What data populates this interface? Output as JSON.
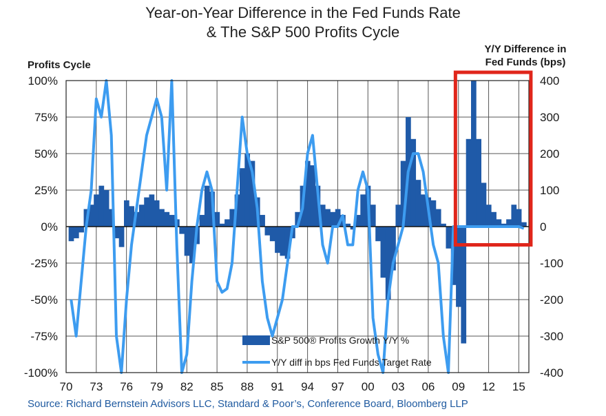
{
  "header": {
    "title_line1": "Year-on-Year Difference in the Fed Funds Rate",
    "title_line2": "& The S&P 500 Profits Cycle"
  },
  "axes": {
    "left_title": "Profits Cycle",
    "right_title_line1": "Y/Y Difference in",
    "right_title_line2": "Fed Funds (bps)"
  },
  "footer": {
    "source": "Source: Richard Bernstein Advisors LLC, Standard & Poor’s, Conference Board, Bloomberg LLP"
  },
  "colors": {
    "bars": "#1f5aa8",
    "line": "#3d9cf0",
    "highlight_box": "#e0261b"
  },
  "chart_data": {
    "type": "bar",
    "x_axis": {
      "range": [
        1970,
        2016
      ],
      "tick_values": [
        1970,
        1973,
        1976,
        1979,
        1982,
        1985,
        1988,
        1991,
        1994,
        1997,
        2000,
        2003,
        2006,
        2009,
        2012,
        2015
      ],
      "tick_labels": [
        "70",
        "73",
        "76",
        "79",
        "82",
        "85",
        "88",
        "91",
        "94",
        "97",
        "00",
        "03",
        "06",
        "09",
        "12",
        "15"
      ]
    },
    "y_left": {
      "range": [
        -100,
        100
      ],
      "tick_values": [
        100,
        75,
        50,
        25,
        0,
        -25,
        -50,
        -75,
        -100
      ],
      "tick_labels": [
        "100%",
        "75%",
        "50%",
        "25%",
        "0%",
        "-25%",
        "-50%",
        "-75%",
        "-100%"
      ]
    },
    "y_right": {
      "range": [
        -400,
        400
      ],
      "tick_values": [
        400,
        300,
        200,
        100,
        0,
        -100,
        -200,
        -300,
        -400
      ],
      "tick_labels": [
        "400",
        "300",
        "200",
        "100",
        "0",
        "-100",
        "-200",
        "-300",
        "-400"
      ]
    },
    "grid": true,
    "legend_position": "bottom-center",
    "highlight_box": {
      "x_range": [
        2008.7,
        2016.2
      ],
      "y_right_range": [
        -50,
        400
      ]
    },
    "series": [
      {
        "name": "S&P 500® Profits Growth Y/Y %",
        "type": "bar",
        "axis": "left",
        "x": [
          1970.5,
          1971.0,
          1971.5,
          1972.0,
          1972.5,
          1973.0,
          1973.5,
          1974.0,
          1974.5,
          1975.0,
          1975.5,
          1976.0,
          1976.5,
          1977.0,
          1977.5,
          1978.0,
          1978.5,
          1979.0,
          1979.5,
          1980.0,
          1980.5,
          1981.0,
          1981.5,
          1982.0,
          1982.5,
          1983.0,
          1983.5,
          1984.0,
          1984.5,
          1985.0,
          1985.5,
          1986.0,
          1986.5,
          1987.0,
          1987.5,
          1988.0,
          1988.5,
          1989.0,
          1989.5,
          1990.0,
          1990.5,
          1991.0,
          1991.5,
          1992.0,
          1992.5,
          1993.0,
          1993.5,
          1994.0,
          1994.5,
          1995.0,
          1995.5,
          1996.0,
          1996.5,
          1997.0,
          1997.5,
          1998.0,
          1998.5,
          1999.0,
          1999.5,
          2000.0,
          2000.5,
          2001.0,
          2001.5,
          2002.0,
          2002.5,
          2003.0,
          2003.5,
          2004.0,
          2004.5,
          2005.0,
          2005.5,
          2006.0,
          2006.5,
          2007.0,
          2007.5,
          2008.0,
          2008.5,
          2009.0,
          2009.5,
          2010.0,
          2010.5,
          2011.0,
          2011.5,
          2012.0,
          2012.5,
          2013.0,
          2013.5,
          2014.0,
          2014.5,
          2015.0,
          2015.5
        ],
        "values": [
          -10,
          -8,
          -4,
          12,
          15,
          22,
          28,
          25,
          12,
          -8,
          -14,
          18,
          14,
          10,
          15,
          20,
          22,
          18,
          12,
          10,
          8,
          5,
          -5,
          -20,
          -25,
          -12,
          8,
          28,
          24,
          10,
          2,
          5,
          12,
          22,
          40,
          50,
          45,
          20,
          8,
          -6,
          -10,
          -18,
          -20,
          -22,
          -8,
          10,
          28,
          45,
          42,
          28,
          15,
          12,
          10,
          12,
          8,
          2,
          -2,
          8,
          22,
          28,
          15,
          -10,
          -35,
          -50,
          -30,
          15,
          45,
          75,
          60,
          32,
          22,
          20,
          18,
          12,
          2,
          -15,
          -40,
          -55,
          -80,
          60,
          100,
          60,
          30,
          15,
          10,
          5,
          2,
          5,
          15,
          12,
          3
        ]
      },
      {
        "name": "Y/Y diff in bps Fed Funds Target Rate",
        "type": "line",
        "axis": "right",
        "x": [
          1970.5,
          1971.0,
          1971.5,
          1972.0,
          1972.5,
          1973.0,
          1973.5,
          1974.0,
          1974.5,
          1975.0,
          1975.5,
          1976.0,
          1976.5,
          1977.0,
          1977.5,
          1978.0,
          1978.5,
          1979.0,
          1979.5,
          1980.0,
          1980.5,
          1981.0,
          1981.5,
          1982.0,
          1982.5,
          1983.0,
          1983.5,
          1984.0,
          1984.5,
          1985.0,
          1985.5,
          1986.0,
          1986.5,
          1987.0,
          1987.5,
          1988.0,
          1988.5,
          1989.0,
          1989.5,
          1990.0,
          1990.5,
          1991.0,
          1991.5,
          1992.0,
          1992.5,
          1993.0,
          1993.5,
          1994.0,
          1994.5,
          1995.0,
          1995.5,
          1996.0,
          1996.5,
          1997.0,
          1997.5,
          1998.0,
          1998.5,
          1999.0,
          1999.5,
          2000.0,
          2000.5,
          2001.0,
          2001.5,
          2002.0,
          2002.5,
          2003.0,
          2003.5,
          2004.0,
          2004.5,
          2005.0,
          2005.5,
          2006.0,
          2006.5,
          2007.0,
          2007.5,
          2008.0,
          2008.5,
          2009.0,
          2009.5,
          2010.0,
          2010.5,
          2011.0,
          2011.5,
          2012.0,
          2012.5,
          2013.0,
          2013.5,
          2014.0,
          2014.5,
          2015.0,
          2015.5
        ],
        "values": [
          -200,
          -300,
          -150,
          0,
          100,
          350,
          300,
          400,
          250,
          -300,
          -400,
          -200,
          -50,
          50,
          150,
          250,
          300,
          350,
          300,
          100,
          400,
          -50,
          -400,
          -350,
          -150,
          0,
          100,
          150,
          100,
          -150,
          -180,
          -170,
          -100,
          100,
          300,
          200,
          150,
          50,
          -150,
          -250,
          -300,
          -250,
          -200,
          -100,
          0,
          0,
          50,
          200,
          250,
          100,
          -50,
          -100,
          0,
          0,
          30,
          -50,
          -50,
          100,
          150,
          100,
          -250,
          -350,
          -400,
          -200,
          -100,
          -50,
          0,
          150,
          200,
          200,
          150,
          50,
          -50,
          -100,
          -300,
          -400,
          0,
          0,
          0,
          0,
          0,
          0,
          0,
          0,
          0,
          0,
          0,
          0,
          0,
          0,
          -5
        ]
      }
    ]
  }
}
